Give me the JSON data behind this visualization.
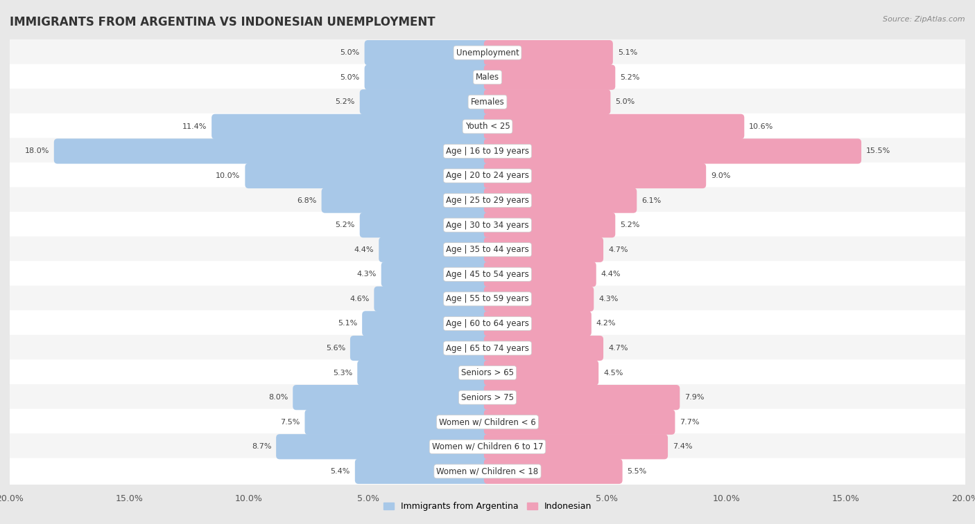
{
  "title": "IMMIGRANTS FROM ARGENTINA VS INDONESIAN UNEMPLOYMENT",
  "source": "Source: ZipAtlas.com",
  "categories": [
    "Unemployment",
    "Males",
    "Females",
    "Youth < 25",
    "Age | 16 to 19 years",
    "Age | 20 to 24 years",
    "Age | 25 to 29 years",
    "Age | 30 to 34 years",
    "Age | 35 to 44 years",
    "Age | 45 to 54 years",
    "Age | 55 to 59 years",
    "Age | 60 to 64 years",
    "Age | 65 to 74 years",
    "Seniors > 65",
    "Seniors > 75",
    "Women w/ Children < 6",
    "Women w/ Children 6 to 17",
    "Women w/ Children < 18"
  ],
  "argentina_values": [
    5.0,
    5.0,
    5.2,
    11.4,
    18.0,
    10.0,
    6.8,
    5.2,
    4.4,
    4.3,
    4.6,
    5.1,
    5.6,
    5.3,
    8.0,
    7.5,
    8.7,
    5.4
  ],
  "indonesian_values": [
    5.1,
    5.2,
    5.0,
    10.6,
    15.5,
    9.0,
    6.1,
    5.2,
    4.7,
    4.4,
    4.3,
    4.2,
    4.7,
    4.5,
    7.9,
    7.7,
    7.4,
    5.5
  ],
  "argentina_color": "#a8c8e8",
  "indonesian_color": "#f0a0b8",
  "argentina_label": "Immigrants from Argentina",
  "indonesian_label": "Indonesian",
  "axis_limit": 20.0,
  "background_color": "#e8e8e8",
  "row_color_odd": "#f5f5f5",
  "row_color_even": "#ffffff",
  "title_fontsize": 12,
  "label_fontsize": 8.5,
  "tick_fontsize": 9,
  "value_fontsize": 8
}
